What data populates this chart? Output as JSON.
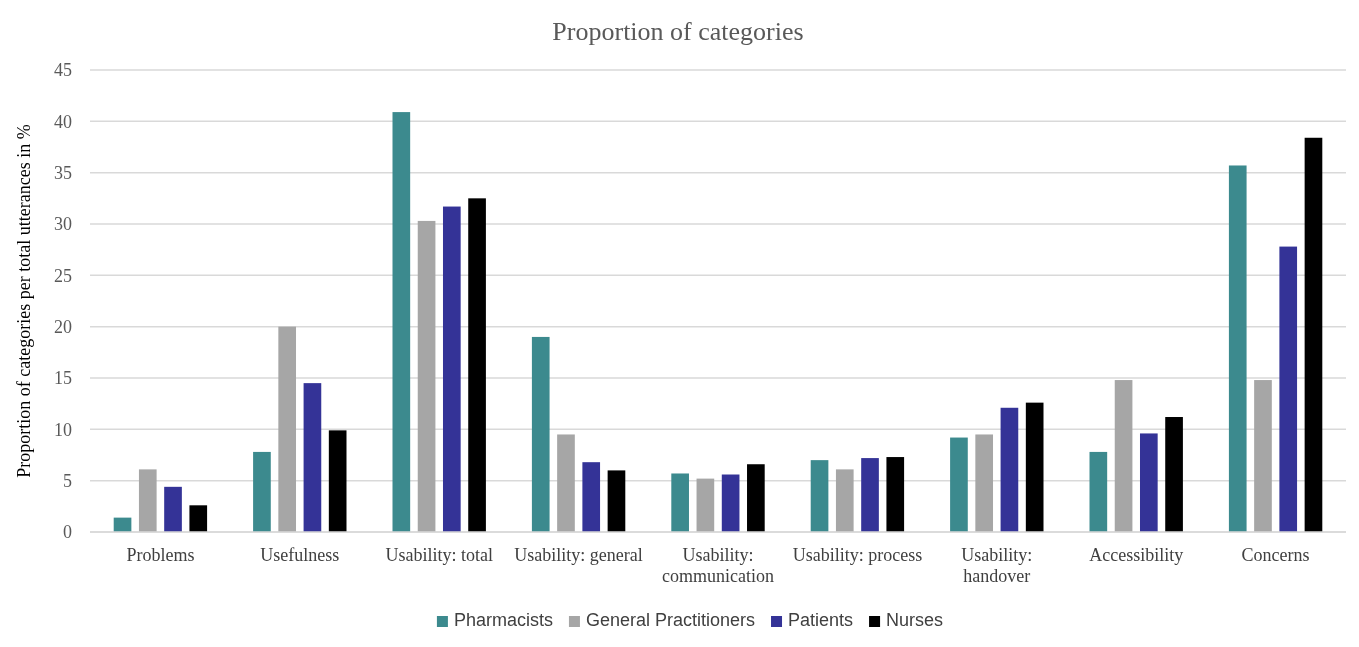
{
  "chart_data": {
    "type": "bar",
    "title": "Proportion of categories",
    "ylabel": "Proportion of categories per total utterances in %",
    "categories": [
      "Problems",
      "Usefulness",
      "Usability: total",
      "Usability: general",
      "Usability: communication",
      "Usability: process",
      "Usability: handover",
      "Accessibility",
      "Concerns"
    ],
    "series": [
      {
        "name": "Pharmacists",
        "color": "#3c8a8e",
        "values": [
          1.4,
          7.8,
          40.9,
          19.0,
          5.7,
          7.0,
          9.2,
          7.8,
          35.7
        ]
      },
      {
        "name": "General Practitioners",
        "color": "#a6a6a6",
        "values": [
          6.1,
          20.0,
          30.3,
          9.5,
          5.2,
          6.1,
          9.5,
          14.8,
          14.8
        ]
      },
      {
        "name": "Patients",
        "color": "#343397",
        "values": [
          4.4,
          14.5,
          31.7,
          6.8,
          5.6,
          7.2,
          12.1,
          9.6,
          27.8
        ]
      },
      {
        "name": "Nurses",
        "color": "#000000",
        "values": [
          2.6,
          9.9,
          32.5,
          6.0,
          6.6,
          7.3,
          12.6,
          11.2,
          38.4
        ]
      }
    ],
    "ylim": [
      0,
      45
    ],
    "yticks": [
      0,
      5,
      10,
      15,
      20,
      25,
      30,
      35,
      40,
      45
    ],
    "grid": "y",
    "legend": "bottom"
  }
}
